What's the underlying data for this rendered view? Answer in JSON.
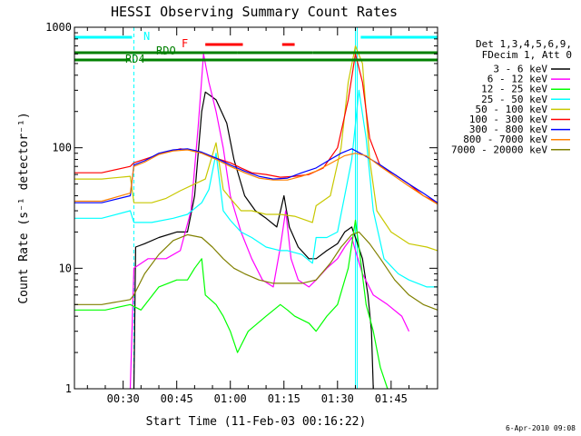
{
  "chart_data": {
    "type": "line",
    "title": "HESSI Observing Summary Count Rates",
    "xlabel": "Start Time (11-Feb-03 00:16:22)",
    "ylabel": "Count Rate (s⁻¹ detector⁻¹)",
    "y_scale": "log",
    "ylim": [
      1,
      1000
    ],
    "xlim": [
      "00:16:22",
      "01:58:00"
    ],
    "x_ticks": [
      "00:30",
      "00:45",
      "01:00",
      "01:15",
      "01:30",
      "01:45"
    ],
    "y_ticks": [
      "1",
      "10",
      "100",
      "1000"
    ],
    "legend_header": [
      "Det 1,3,4,5,6,9,",
      "FDecim 1, Att 0"
    ],
    "legend_placement": "right-outside",
    "grid": false,
    "timestamp": "6-Apr-2010 09:08",
    "flags": [
      {
        "label": "N",
        "color": "#00ffff",
        "segments": [
          [
            "00:16:22",
            "00:32:30"
          ],
          [
            "01:36:30",
            "01:58:00"
          ]
        ]
      },
      {
        "label": "F",
        "color": "#ff0000",
        "segments": [
          [
            "00:53:00",
            "01:03:30"
          ],
          [
            "01:14:30",
            "01:18:00"
          ]
        ]
      },
      {
        "label": "RDO",
        "color": "#008000",
        "segments": [
          [
            "00:16:22",
            "01:02:00"
          ],
          [
            "01:02:00",
            "01:23:00"
          ],
          [
            "01:23:00",
            "01:58:00"
          ]
        ]
      },
      {
        "label": "RD4",
        "color": "#008000",
        "segments": [
          [
            "00:16:22",
            "00:32:00"
          ],
          [
            "00:35:00",
            "01:58:00"
          ]
        ]
      }
    ],
    "vlines": [
      {
        "t": "00:33:00",
        "color": "#00ffff",
        "style": "dashed"
      },
      {
        "t": "01:35:00",
        "color": "#00ffff",
        "style": "solid"
      },
      {
        "t": "01:35:30",
        "color": "#00ffff",
        "style": "solid"
      },
      {
        "t": "01:58:00",
        "color": "#00ffff",
        "style": "dashed"
      }
    ],
    "series": [
      {
        "name": "3 - 6 keV",
        "color": "#000000",
        "points": [
          [
            "00:33:00",
            1.0
          ],
          [
            "00:33:30",
            15
          ],
          [
            "00:36:00",
            16
          ],
          [
            "00:40:00",
            18
          ],
          [
            "00:45:00",
            20
          ],
          [
            "00:48:00",
            20
          ],
          [
            "00:50:00",
            40
          ],
          [
            "00:52:00",
            200
          ],
          [
            "00:53:00",
            290
          ],
          [
            "00:56:00",
            250
          ],
          [
            "00:59:00",
            160
          ],
          [
            "01:01:00",
            80
          ],
          [
            "01:04:00",
            40
          ],
          [
            "01:07:00",
            30
          ],
          [
            "01:10:00",
            26
          ],
          [
            "01:13:00",
            22
          ],
          [
            "01:15:00",
            40
          ],
          [
            "01:16:30",
            22
          ],
          [
            "01:19:00",
            15
          ],
          [
            "01:22:00",
            12
          ],
          [
            "01:24:00",
            12
          ],
          [
            "01:27:00",
            14
          ],
          [
            "01:30:00",
            16
          ],
          [
            "01:32:00",
            20
          ],
          [
            "01:34:00",
            22
          ],
          [
            "01:35:00",
            18
          ],
          [
            "01:37:00",
            12
          ],
          [
            "01:38:30",
            6
          ],
          [
            "01:39:30",
            3
          ],
          [
            "01:40:00",
            1.0
          ]
        ]
      },
      {
        "name": "6 - 12 keV",
        "color": "#ff00ff",
        "points": [
          [
            "00:32:00",
            1.0
          ],
          [
            "00:33:00",
            10
          ],
          [
            "00:37:00",
            12
          ],
          [
            "00:42:00",
            12
          ],
          [
            "00:46:00",
            14
          ],
          [
            "00:49:00",
            30
          ],
          [
            "00:51:00",
            150
          ],
          [
            "00:52:30",
            600
          ],
          [
            "00:54:00",
            350
          ],
          [
            "00:56:00",
            200
          ],
          [
            "00:58:00",
            100
          ],
          [
            "01:00:00",
            40
          ],
          [
            "01:03:00",
            20
          ],
          [
            "01:06:00",
            12
          ],
          [
            "01:09:00",
            8
          ],
          [
            "01:12:00",
            7
          ],
          [
            "01:14:00",
            15
          ],
          [
            "01:15:30",
            30
          ],
          [
            "01:17:00",
            12
          ],
          [
            "01:19:00",
            8
          ],
          [
            "01:22:00",
            7
          ],
          [
            "01:24:00",
            8
          ],
          [
            "01:27:00",
            10
          ],
          [
            "01:30:00",
            12
          ],
          [
            "01:32:00",
            15
          ],
          [
            "01:34:00",
            18
          ],
          [
            "01:35:00",
            14
          ],
          [
            "01:37:00",
            9
          ],
          [
            "01:40:00",
            6
          ],
          [
            "01:44:00",
            5
          ],
          [
            "01:48:00",
            4
          ],
          [
            "01:50:00",
            3
          ]
        ]
      },
      {
        "name": "12 - 25 keV",
        "color": "#00ff00",
        "points": [
          [
            "00:16:22",
            4.5
          ],
          [
            "00:25:00",
            4.5
          ],
          [
            "00:32:00",
            5
          ],
          [
            "00:35:00",
            4.5
          ],
          [
            "00:40:00",
            7
          ],
          [
            "00:45:00",
            8
          ],
          [
            "00:48:00",
            8
          ],
          [
            "00:50:00",
            10
          ],
          [
            "00:52:00",
            12
          ],
          [
            "00:53:00",
            6
          ],
          [
            "00:56:00",
            5
          ],
          [
            "00:58:00",
            4
          ],
          [
            "01:00:00",
            3
          ],
          [
            "01:02:00",
            2
          ],
          [
            "01:05:00",
            3
          ],
          [
            "01:10:00",
            4
          ],
          [
            "01:14:00",
            5
          ],
          [
            "01:16:00",
            4.5
          ],
          [
            "01:18:00",
            4
          ],
          [
            "01:22:00",
            3.5
          ],
          [
            "01:24:00",
            3
          ],
          [
            "01:27:00",
            4
          ],
          [
            "01:30:00",
            5
          ],
          [
            "01:33:00",
            10
          ],
          [
            "01:35:00",
            25
          ],
          [
            "01:36:00",
            15
          ],
          [
            "01:38:00",
            5
          ],
          [
            "01:40:00",
            3
          ],
          [
            "01:42:00",
            1.5
          ],
          [
            "01:44:00",
            1.0
          ]
        ]
      },
      {
        "name": "25 - 50 keV",
        "color": "#00ffff",
        "points": [
          [
            "00:16:22",
            26
          ],
          [
            "00:24:00",
            26
          ],
          [
            "00:32:00",
            30
          ],
          [
            "00:33:00",
            24
          ],
          [
            "00:38:00",
            24
          ],
          [
            "00:44:00",
            26
          ],
          [
            "00:48:00",
            28
          ],
          [
            "00:52:00",
            35
          ],
          [
            "00:54:00",
            45
          ],
          [
            "00:56:00",
            90
          ],
          [
            "00:58:00",
            30
          ],
          [
            "01:00:00",
            25
          ],
          [
            "01:03:00",
            20
          ],
          [
            "01:06:00",
            18
          ],
          [
            "01:10:00",
            15
          ],
          [
            "01:14:00",
            14
          ],
          [
            "01:16:00",
            14
          ],
          [
            "01:20:00",
            13
          ],
          [
            "01:23:00",
            11
          ],
          [
            "01:24:00",
            18
          ],
          [
            "01:27:00",
            18
          ],
          [
            "01:30:00",
            20
          ],
          [
            "01:32:00",
            40
          ],
          [
            "01:34:00",
            80
          ],
          [
            "01:36:00",
            300
          ],
          [
            "01:38:00",
            120
          ],
          [
            "01:40:00",
            30
          ],
          [
            "01:43:00",
            12
          ],
          [
            "01:47:00",
            9
          ],
          [
            "01:50:00",
            8
          ],
          [
            "01:55:00",
            7
          ],
          [
            "01:58:00",
            7
          ]
        ]
      },
      {
        "name": "50 - 100 keV",
        "color": "#c8c800",
        "points": [
          [
            "00:16:22",
            55
          ],
          [
            "00:24:00",
            55
          ],
          [
            "00:32:00",
            58
          ],
          [
            "00:33:00",
            35
          ],
          [
            "00:38:00",
            35
          ],
          [
            "00:42:00",
            38
          ],
          [
            "00:46:00",
            44
          ],
          [
            "00:50:00",
            50
          ],
          [
            "00:53:00",
            55
          ],
          [
            "00:56:00",
            110
          ],
          [
            "00:58:00",
            45
          ],
          [
            "01:00:00",
            38
          ],
          [
            "01:03:00",
            30
          ],
          [
            "01:06:00",
            30
          ],
          [
            "01:10:00",
            28
          ],
          [
            "01:14:00",
            28
          ],
          [
            "01:18:00",
            27
          ],
          [
            "01:23:00",
            24
          ],
          [
            "01:24:00",
            33
          ],
          [
            "01:28:00",
            40
          ],
          [
            "01:31:00",
            100
          ],
          [
            "01:33:00",
            350
          ],
          [
            "01:35:00",
            700
          ],
          [
            "01:37:00",
            500
          ],
          [
            "01:39:00",
            80
          ],
          [
            "01:41:00",
            30
          ],
          [
            "01:45:00",
            20
          ],
          [
            "01:50:00",
            16
          ],
          [
            "01:55:00",
            15
          ],
          [
            "01:58:00",
            14
          ]
        ]
      },
      {
        "name": "100 - 300 keV",
        "color": "#ff0000",
        "points": [
          [
            "00:16:22",
            62
          ],
          [
            "00:24:00",
            62
          ],
          [
            "00:32:00",
            70
          ],
          [
            "00:33:00",
            75
          ],
          [
            "00:37:00",
            82
          ],
          [
            "00:41:00",
            90
          ],
          [
            "00:46:00",
            98
          ],
          [
            "00:50:00",
            95
          ],
          [
            "00:53:00",
            88
          ],
          [
            "00:57:00",
            80
          ],
          [
            "01:00:00",
            75
          ],
          [
            "01:03:00",
            68
          ],
          [
            "01:06:00",
            62
          ],
          [
            "01:10:00",
            60
          ],
          [
            "01:14:00",
            57
          ],
          [
            "01:18:00",
            58
          ],
          [
            "01:22:00",
            60
          ],
          [
            "01:26:00",
            68
          ],
          [
            "01:30:00",
            100
          ],
          [
            "01:33:00",
            250
          ],
          [
            "01:35:00",
            600
          ],
          [
            "01:37:00",
            350
          ],
          [
            "01:39:00",
            120
          ],
          [
            "01:42:00",
            70
          ],
          [
            "01:46:00",
            60
          ],
          [
            "01:50:00",
            50
          ],
          [
            "01:54:00",
            40
          ],
          [
            "01:58:00",
            35
          ]
        ]
      },
      {
        "name": "300 - 800 keV",
        "color": "#0000ff",
        "points": [
          [
            "00:16:22",
            35
          ],
          [
            "00:24:00",
            35
          ],
          [
            "00:32:00",
            40
          ],
          [
            "00:33:00",
            72
          ],
          [
            "00:36:00",
            78
          ],
          [
            "00:40:00",
            90
          ],
          [
            "00:44:00",
            96
          ],
          [
            "00:48:00",
            98
          ],
          [
            "00:52:00",
            92
          ],
          [
            "00:56:00",
            82
          ],
          [
            "01:00:00",
            72
          ],
          [
            "01:04:00",
            64
          ],
          [
            "01:08:00",
            58
          ],
          [
            "01:12:00",
            55
          ],
          [
            "01:16:00",
            56
          ],
          [
            "01:20:00",
            62
          ],
          [
            "01:24:00",
            68
          ],
          [
            "01:28:00",
            80
          ],
          [
            "01:31:00",
            90
          ],
          [
            "01:34:00",
            98
          ],
          [
            "01:37:00",
            88
          ],
          [
            "01:42:00",
            72
          ],
          [
            "01:46:00",
            60
          ],
          [
            "01:50:00",
            50
          ],
          [
            "01:54:00",
            42
          ],
          [
            "01:58:00",
            35
          ]
        ]
      },
      {
        "name": "800 - 7000 keV",
        "color": "#ff8000",
        "points": [
          [
            "00:16:22",
            36
          ],
          [
            "00:24:00",
            36
          ],
          [
            "00:32:00",
            42
          ],
          [
            "00:33:00",
            70
          ],
          [
            "00:36:00",
            76
          ],
          [
            "00:40:00",
            88
          ],
          [
            "00:44:00",
            94
          ],
          [
            "00:48:00",
            96
          ],
          [
            "00:52:00",
            90
          ],
          [
            "00:56:00",
            80
          ],
          [
            "01:00:00",
            70
          ],
          [
            "01:04:00",
            62
          ],
          [
            "01:08:00",
            56
          ],
          [
            "01:12:00",
            54
          ],
          [
            "01:16:00",
            54
          ],
          [
            "01:20:00",
            58
          ],
          [
            "01:24:00",
            64
          ],
          [
            "01:28:00",
            74
          ],
          [
            "01:32:00",
            86
          ],
          [
            "01:35:00",
            90
          ],
          [
            "01:38:00",
            86
          ],
          [
            "01:42:00",
            70
          ],
          [
            "01:46:00",
            58
          ],
          [
            "01:50:00",
            48
          ],
          [
            "01:54:00",
            40
          ],
          [
            "01:58:00",
            34
          ]
        ]
      },
      {
        "name": "7000 - 20000 keV",
        "color": "#808000",
        "points": [
          [
            "00:16:22",
            5
          ],
          [
            "00:24:00",
            5
          ],
          [
            "00:32:00",
            5.5
          ],
          [
            "00:33:00",
            6
          ],
          [
            "00:36:00",
            9
          ],
          [
            "00:40:00",
            13
          ],
          [
            "00:44:00",
            17
          ],
          [
            "00:48:00",
            19
          ],
          [
            "00:52:00",
            18
          ],
          [
            "00:55:00",
            15
          ],
          [
            "00:58:00",
            12
          ],
          [
            "01:01:00",
            10
          ],
          [
            "01:04:00",
            9
          ],
          [
            "01:08:00",
            8
          ],
          [
            "01:12:00",
            7.5
          ],
          [
            "01:16:00",
            7.5
          ],
          [
            "01:20:00",
            7.5
          ],
          [
            "01:24:00",
            8
          ],
          [
            "01:28:00",
            11
          ],
          [
            "01:31:00",
            15
          ],
          [
            "01:34:00",
            19
          ],
          [
            "01:36:00",
            20
          ],
          [
            "01:39:00",
            16
          ],
          [
            "01:42:00",
            12
          ],
          [
            "01:46:00",
            8
          ],
          [
            "01:50:00",
            6
          ],
          [
            "01:54:00",
            5
          ],
          [
            "01:58:00",
            4.5
          ]
        ]
      }
    ]
  }
}
